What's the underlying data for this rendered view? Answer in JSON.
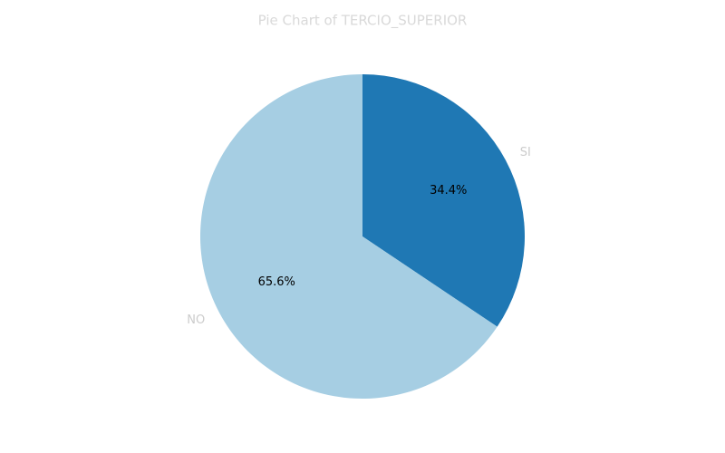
{
  "chart_data": {
    "type": "pie",
    "title": "Pie Chart of TERCIO_SUPERIOR",
    "categories": [
      "SI",
      "NO"
    ],
    "values": [
      34.4,
      65.6
    ],
    "value_labels": [
      "34.4%",
      "65.6%"
    ],
    "colors": [
      "#1f78b4",
      "#a6cee3"
    ]
  }
}
